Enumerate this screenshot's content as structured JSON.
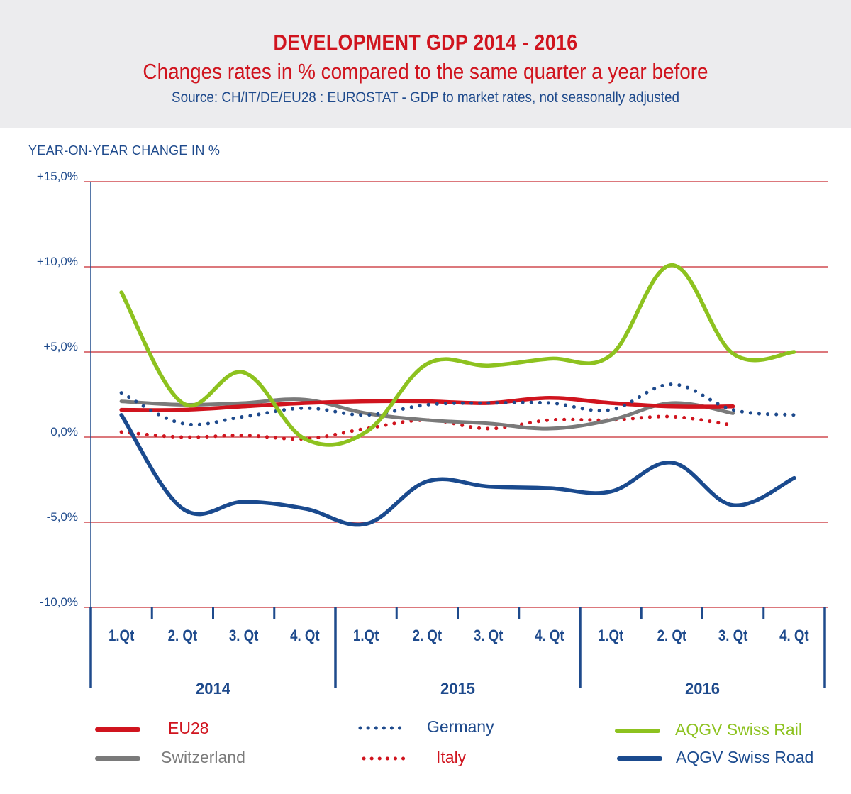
{
  "header": {
    "title": "DEVELOPMENT GDP 2014 - 2016",
    "subtitle": "Changes rates in % compared to the same quarter a year before",
    "source": "Source: CH/IT/DE/EU28 : EUROSTAT - GDP to market rates, not seasonally adjusted"
  },
  "colors": {
    "eu28": "#d0141e",
    "switzerland": "#7a7a7a",
    "germany": "#1e4a8c",
    "italy": "#d0141e",
    "rail": "#8dc21f",
    "road": "#1a4a8e",
    "grid": "#c8282d",
    "axis": "#1e4a8c"
  },
  "chart_data": {
    "type": "line",
    "title": "DEVELOPMENT GDP 2014 - 2016",
    "subtitle": "Changes rates in % compared to the same quarter a year before",
    "ylabel": "YEAR-ON-YEAR CHANGE IN %",
    "xlabel": "",
    "ylim": [
      -10,
      15
    ],
    "yticks": [
      15,
      10,
      5,
      0,
      -5,
      -10
    ],
    "ytick_labels": [
      "+15,0%",
      "+10,0%",
      "+5,0%",
      "0,0%",
      "-5,0%",
      "-10,0%"
    ],
    "grid": true,
    "legend_position": "bottom",
    "years": [
      "2014",
      "2015",
      "2016"
    ],
    "categories": [
      "1.Qt",
      "2. Qt",
      "3. Qt",
      "4. Qt",
      "1.Qt",
      "2. Qt",
      "3. Qt",
      "4. Qt",
      "1.Qt",
      "2. Qt",
      "3. Qt",
      "4. Qt"
    ],
    "series": [
      {
        "key": "eu28",
        "name": "EU28",
        "style": "solid",
        "values": [
          1.6,
          1.6,
          1.8,
          2.0,
          2.1,
          2.1,
          2.0,
          2.3,
          2.0,
          1.8,
          1.8,
          null
        ]
      },
      {
        "key": "switzerland",
        "name": "Switzerland",
        "style": "solid",
        "values": [
          2.1,
          1.9,
          2.0,
          2.2,
          1.4,
          1.0,
          0.8,
          0.5,
          1.0,
          2.0,
          1.4,
          null
        ]
      },
      {
        "key": "germany",
        "name": "Germany",
        "style": "dotted",
        "values": [
          2.6,
          0.8,
          1.2,
          1.7,
          1.3,
          1.9,
          2.0,
          2.0,
          1.6,
          3.1,
          1.6,
          1.3
        ]
      },
      {
        "key": "italy",
        "name": "Italy",
        "style": "dotted",
        "values": [
          0.3,
          0.0,
          0.1,
          -0.1,
          0.5,
          1.0,
          0.5,
          1.0,
          1.0,
          1.2,
          0.7,
          null
        ]
      },
      {
        "key": "rail",
        "name": "AQGV Swiss Rail",
        "style": "solid",
        "values": [
          8.5,
          2.0,
          3.8,
          -0.1,
          0.3,
          4.3,
          4.2,
          4.6,
          4.8,
          10.1,
          4.9,
          5.0
        ]
      },
      {
        "key": "road",
        "name": "AQGV Swiss Road",
        "style": "solid",
        "values": [
          1.3,
          -4.2,
          -3.8,
          -4.2,
          -5.1,
          -2.6,
          -2.9,
          -3.0,
          -3.2,
          -1.5,
          -4.0,
          -2.4
        ]
      }
    ]
  },
  "legend": [
    {
      "key": "eu28",
      "label": "EU28"
    },
    {
      "key": "switzerland",
      "label": "Switzerland"
    },
    {
      "key": "germany",
      "label": "Germany"
    },
    {
      "key": "italy",
      "label": "Italy"
    },
    {
      "key": "rail",
      "label": "AQGV Swiss Rail"
    },
    {
      "key": "road",
      "label": "AQGV Swiss Road"
    }
  ]
}
